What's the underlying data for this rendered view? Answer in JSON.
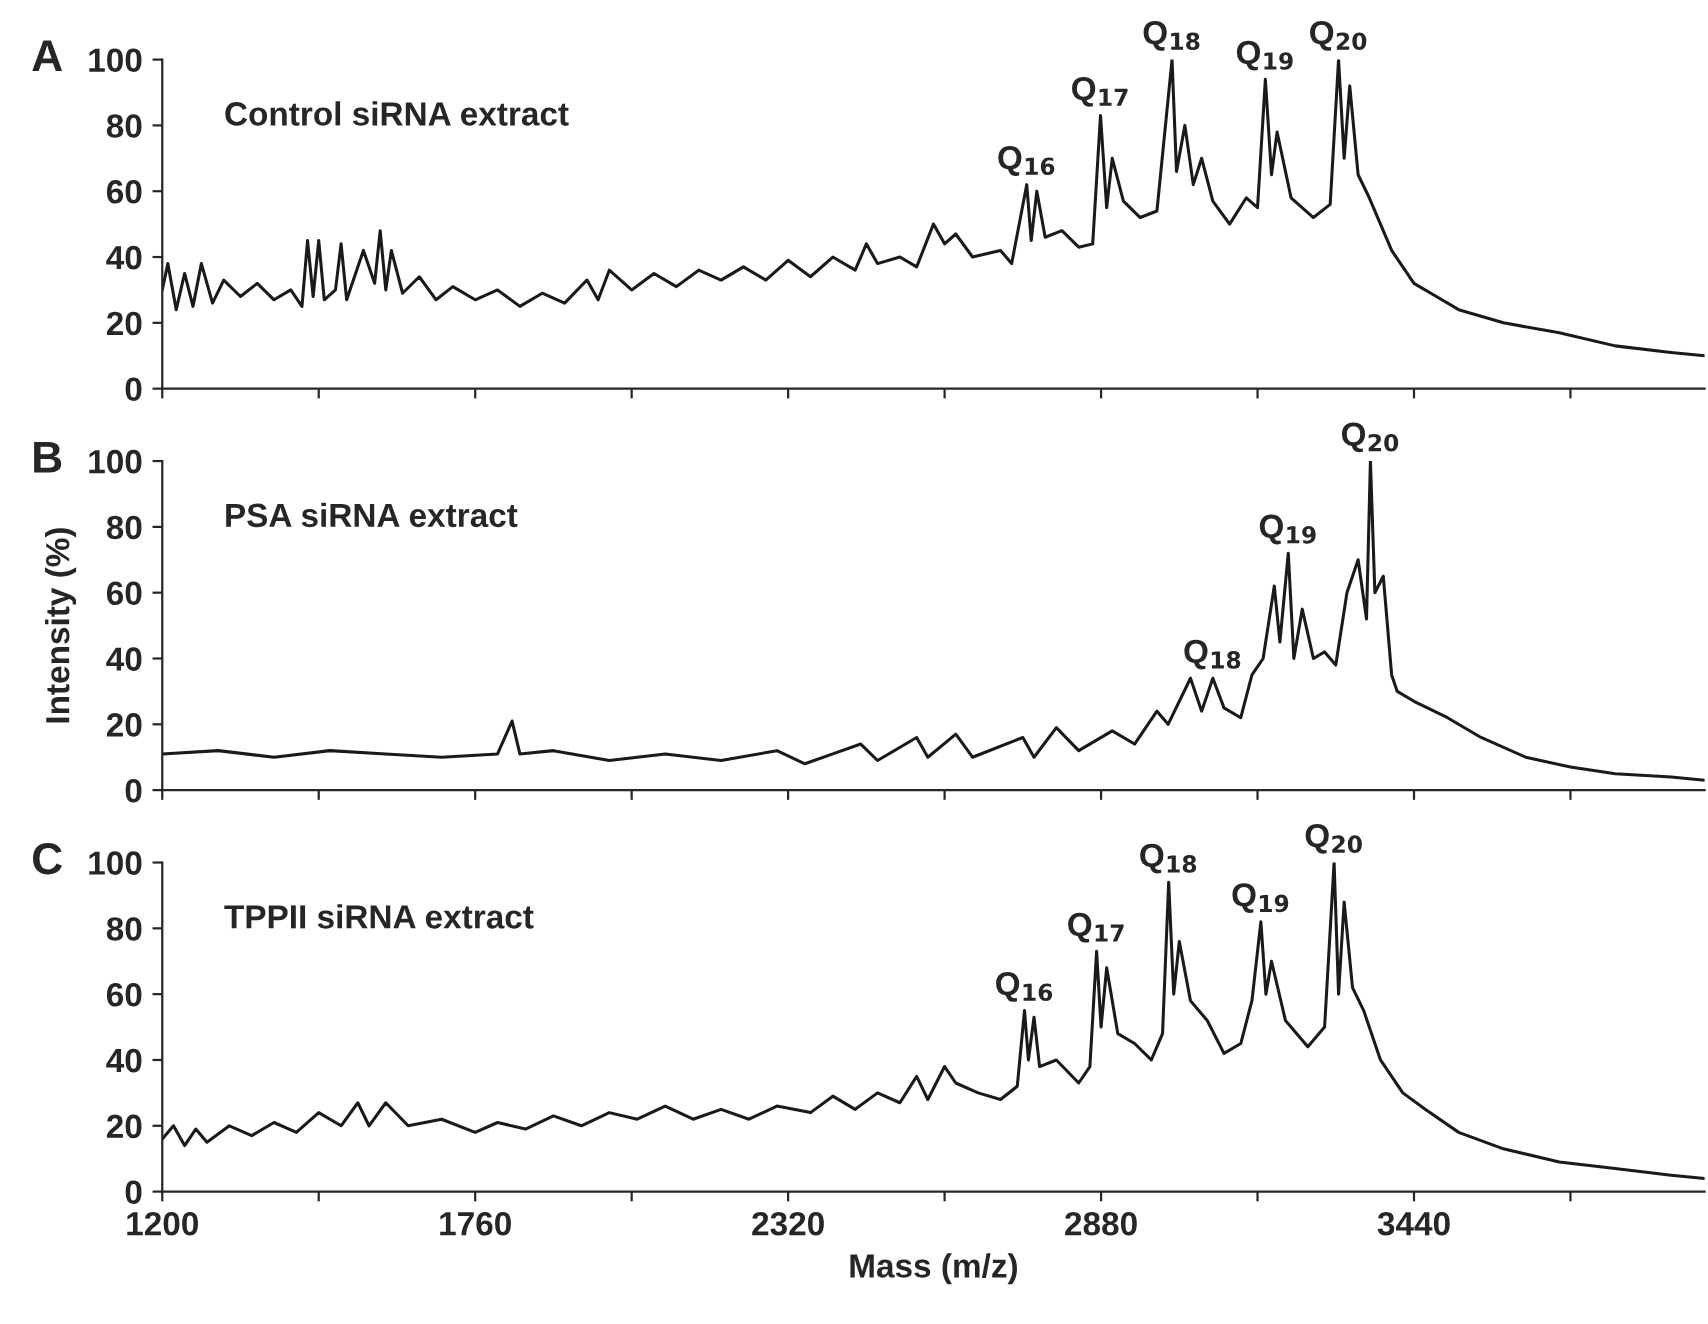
{
  "chart_data": [
    {
      "type": "line",
      "title": "Control siRNA extract",
      "annotations": [
        "A",
        {
          "text": "Q$_{16}$",
          "x": 2747,
          "y": 62
        },
        {
          "text": "Q$_{17}$",
          "x": 2879,
          "y": 83
        },
        {
          "text": "Q$_{18}$",
          "x": 3007,
          "y": 100
        },
        {
          "text": "Q$_{19}$",
          "x": 3174,
          "y": 94
        },
        {
          "text": "Q$_{20}$",
          "x": 3305,
          "y": 100
        }
      ],
      "series": [
        {
          "color": "#1a1a1a",
          "x": [
            1200,
            1210,
            1225,
            1240,
            1255,
            1270,
            1290,
            1310,
            1340,
            1370,
            1400,
            1430,
            1450,
            1460,
            1470,
            1480,
            1490,
            1510,
            1520,
            1530,
            1560,
            1580,
            1590,
            1600,
            1610,
            1630,
            1660,
            1690,
            1720,
            1760,
            1800,
            1840,
            1880,
            1920,
            1960,
            1980,
            2000,
            2040,
            2080,
            2120,
            2160,
            2200,
            2240,
            2280,
            2320,
            2360,
            2400,
            2440,
            2460,
            2480,
            2520,
            2550,
            2580,
            2600,
            2620,
            2650,
            2700,
            2720,
            2747,
            2755,
            2765,
            2780,
            2810,
            2840,
            2865,
            2879,
            2890,
            2900,
            2920,
            2950,
            2980,
            3007,
            3015,
            3030,
            3045,
            3060,
            3080,
            3110,
            3140,
            3160,
            3174,
            3185,
            3195,
            3220,
            3260,
            3290,
            3305,
            3315,
            3325,
            3340,
            3360,
            3400,
            3440,
            3480,
            3520,
            3600,
            3700,
            3800,
            3900,
            3960
          ],
          "values": [
            30,
            38,
            24,
            35,
            25,
            38,
            26,
            33,
            28,
            32,
            27,
            30,
            25,
            45,
            28,
            45,
            27,
            30,
            44,
            27,
            42,
            32,
            48,
            30,
            42,
            29,
            34,
            27,
            31,
            27,
            30,
            25,
            29,
            26,
            33,
            27,
            36,
            30,
            35,
            31,
            36,
            33,
            37,
            33,
            39,
            34,
            40,
            36,
            44,
            38,
            40,
            37,
            50,
            44,
            47,
            40,
            42,
            38,
            62,
            45,
            60,
            46,
            48,
            43,
            44,
            83,
            55,
            70,
            57,
            52,
            54,
            100,
            66,
            80,
            62,
            70,
            57,
            50,
            58,
            55,
            94,
            65,
            78,
            58,
            52,
            56,
            100,
            70,
            92,
            65,
            58,
            42,
            32,
            28,
            24,
            20,
            17,
            13,
            11,
            10
          ]
        }
      ],
      "xlim": [
        1200,
        3960
      ],
      "xticks": [
        1200,
        1480,
        1760,
        2040,
        2320,
        2600,
        2880,
        3160,
        3440,
        3720
      ],
      "ylim": [
        0,
        100
      ],
      "yticks": [
        0,
        20,
        40,
        60,
        80,
        100
      ],
      "tick_labels": "y",
      "grid": false,
      "legend": false
    },
    {
      "type": "line",
      "title": "PSA siRNA extract",
      "ylabel": "Intensity (%)",
      "annotations": [
        "B",
        {
          "text": "Q$_{18}$",
          "x": 3080,
          "y": 34
        },
        {
          "text": "Q$_{19}$",
          "x": 3215,
          "y": 72
        },
        {
          "text": "Q$_{20}$",
          "x": 3362,
          "y": 100
        }
      ],
      "series": [
        {
          "color": "#1a1a1a",
          "x": [
            1200,
            1300,
            1400,
            1500,
            1600,
            1700,
            1800,
            1826,
            1840,
            1900,
            2000,
            2100,
            2200,
            2300,
            2350,
            2400,
            2450,
            2480,
            2550,
            2570,
            2620,
            2650,
            2740,
            2760,
            2800,
            2840,
            2900,
            2940,
            2980,
            3000,
            3040,
            3060,
            3080,
            3100,
            3130,
            3150,
            3170,
            3190,
            3200,
            3215,
            3225,
            3240,
            3260,
            3280,
            3300,
            3320,
            3340,
            3355,
            3362,
            3370,
            3385,
            3400,
            3410,
            3440,
            3500,
            3560,
            3640,
            3720,
            3800,
            3900,
            3960
          ],
          "values": [
            11,
            12,
            10,
            12,
            11,
            10,
            11,
            21,
            11,
            12,
            9,
            11,
            9,
            12,
            8,
            11,
            14,
            9,
            16,
            10,
            17,
            10,
            16,
            10,
            19,
            12,
            18,
            14,
            24,
            20,
            34,
            24,
            34,
            25,
            22,
            35,
            40,
            62,
            45,
            72,
            40,
            55,
            40,
            42,
            38,
            60,
            70,
            52,
            100,
            60,
            65,
            35,
            30,
            27,
            22,
            16,
            10,
            7,
            5,
            4,
            3
          ]
        }
      ],
      "xlim": [
        1200,
        3960
      ],
      "xticks": [
        1200,
        1480,
        1760,
        2040,
        2320,
        2600,
        2880,
        3160,
        3440,
        3720
      ],
      "ylim": [
        0,
        100
      ],
      "yticks": [
        0,
        20,
        40,
        60,
        80,
        100
      ],
      "tick_labels": "y",
      "grid": false,
      "legend": false
    },
    {
      "type": "line",
      "title": "TPPII siRNA extract",
      "xlabel": "Mass (m/z)",
      "annotations": [
        "C",
        {
          "text": "Q$_{16}$",
          "x": 2743,
          "y": 55
        },
        {
          "text": "Q$_{17}$",
          "x": 2872,
          "y": 73
        },
        {
          "text": "Q$_{18}$",
          "x": 3001,
          "y": 94
        },
        {
          "text": "Q$_{19}$",
          "x": 3166,
          "y": 82
        },
        {
          "text": "Q$_{20}$",
          "x": 3297,
          "y": 100
        }
      ],
      "series": [
        {
          "color": "#1a1a1a",
          "x": [
            1200,
            1220,
            1240,
            1260,
            1280,
            1320,
            1360,
            1400,
            1440,
            1480,
            1520,
            1550,
            1570,
            1600,
            1640,
            1700,
            1760,
            1800,
            1850,
            1900,
            1950,
            2000,
            2050,
            2100,
            2150,
            2200,
            2250,
            2300,
            2360,
            2400,
            2440,
            2480,
            2520,
            2550,
            2570,
            2600,
            2620,
            2660,
            2700,
            2730,
            2743,
            2750,
            2760,
            2770,
            2800,
            2840,
            2860,
            2872,
            2880,
            2890,
            2910,
            2940,
            2970,
            2990,
            3001,
            3010,
            3020,
            3040,
            3070,
            3100,
            3130,
            3150,
            3166,
            3175,
            3185,
            3210,
            3250,
            3280,
            3297,
            3305,
            3315,
            3330,
            3350,
            3380,
            3420,
            3460,
            3520,
            3600,
            3700,
            3800,
            3900,
            3960
          ],
          "values": [
            16,
            20,
            14,
            19,
            15,
            20,
            17,
            21,
            18,
            24,
            20,
            27,
            20,
            27,
            20,
            22,
            18,
            21,
            19,
            23,
            20,
            24,
            22,
            26,
            22,
            25,
            22,
            26,
            24,
            29,
            25,
            30,
            27,
            35,
            28,
            38,
            33,
            30,
            28,
            32,
            55,
            40,
            53,
            38,
            40,
            33,
            38,
            73,
            50,
            68,
            48,
            45,
            40,
            48,
            94,
            60,
            76,
            58,
            52,
            42,
            45,
            58,
            82,
            60,
            70,
            52,
            44,
            50,
            100,
            60,
            88,
            62,
            55,
            40,
            30,
            25,
            18,
            13,
            9,
            7,
            5,
            4
          ]
        }
      ],
      "xlim": [
        1200,
        3960
      ],
      "xticks": [
        1200,
        {
          "value": 1480,
          "label": null
        },
        1760,
        {
          "value": 2040,
          "label": null
        },
        2320,
        {
          "value": 2600,
          "label": null
        },
        2880,
        {
          "value": 3160,
          "label": null
        },
        3440,
        {
          "value": 3720,
          "label": null
        }
      ],
      "ylim": [
        0,
        100
      ],
      "yticks": [
        0,
        20,
        40,
        60,
        80,
        100
      ],
      "grid": false,
      "legend": false
    }
  ]
}
